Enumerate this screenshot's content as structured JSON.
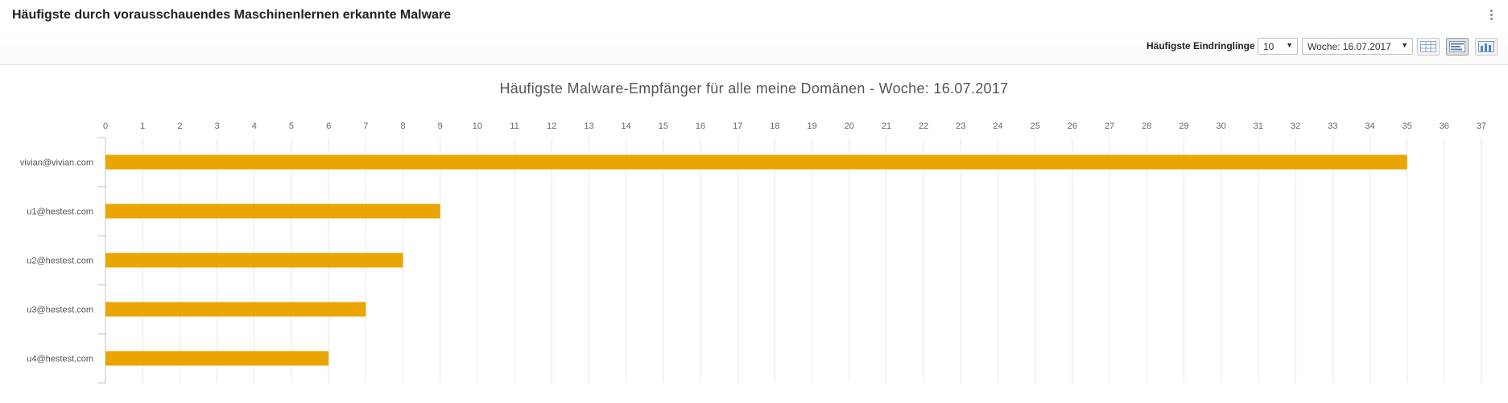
{
  "widget": {
    "title": "Häufigste durch vorausschauendes Maschinenlernen erkannte Malware"
  },
  "toolbar": {
    "label": "Häufigste Eindringlinge",
    "count_value": "10",
    "week_value": "Woche: 16.07.2017"
  },
  "colors": {
    "bar": "#eaa500",
    "grid": "#e6e6e6",
    "axis": "#c0c0c0"
  },
  "chart_data": {
    "type": "bar",
    "orientation": "horizontal",
    "title": "Häufigste Malware-Empfänger für alle meine Domänen - Woche: 16.07.2017",
    "categories": [
      "vivian@vivian.com",
      "u1@hestest.com",
      "u2@hestest.com",
      "u3@hestest.com",
      "u4@hestest.com"
    ],
    "values": [
      35,
      9,
      8,
      7,
      6
    ],
    "xlim": [
      0,
      37
    ],
    "xticks": [
      0,
      1,
      2,
      3,
      4,
      5,
      6,
      7,
      8,
      9,
      10,
      11,
      12,
      13,
      14,
      15,
      16,
      17,
      18,
      19,
      20,
      21,
      22,
      23,
      24,
      25,
      26,
      27,
      28,
      29,
      30,
      31,
      32,
      33,
      34,
      35,
      36,
      37
    ],
    "x_axis_position": "top",
    "grid": true,
    "legend": "none"
  }
}
